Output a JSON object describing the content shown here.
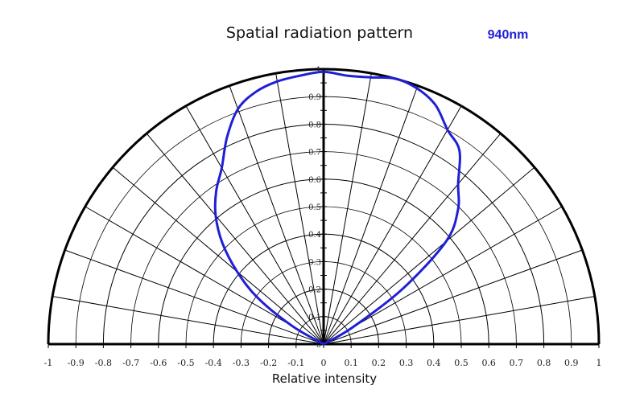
{
  "chart_data": {
    "type": "polar",
    "title": "Spatial radiation pattern",
    "wavelength_label": "940nm",
    "xlabel": "Relative intensity",
    "x_ticks": [
      "-1",
      "-0.9",
      "-0.8",
      "-0.7",
      "-0.6",
      "-0.5",
      "-0.4",
      "-0.3",
      "-0.2",
      "-0.1",
      "0",
      "0.1",
      "0.2",
      "0.3",
      "0.4",
      "0.5",
      "0.6",
      "0.7",
      "0.8",
      "0.9",
      "1"
    ],
    "radial_ticks": [
      "0",
      "0.1",
      "0.2",
      "0.3",
      "0.4",
      "0.5",
      "0.6",
      "0.7",
      "0.8",
      "0.9",
      "1"
    ],
    "angle_range_deg": [
      -90,
      90
    ],
    "angle_grid_step_deg": 10,
    "radial_range": [
      0,
      1
    ],
    "grid": true,
    "colors": {
      "series": "#1f1fd6",
      "wavelength": "#1f1fd6",
      "grid": "#000000"
    },
    "series": [
      {
        "name": "940nm",
        "angles_deg": [
          -60,
          -55,
          -50,
          -45,
          -40,
          -35,
          -30,
          -25,
          -20,
          -15,
          -10,
          -5,
          0,
          5,
          10,
          15,
          20,
          25,
          30,
          35,
          40,
          45,
          50,
          55,
          60
        ],
        "values": [
          0.13,
          0.29,
          0.41,
          0.52,
          0.61,
          0.68,
          0.74,
          0.83,
          0.91,
          0.95,
          0.97,
          0.98,
          0.99,
          0.98,
          0.985,
          1.0,
          0.99,
          0.96,
          0.9,
          0.86,
          0.76,
          0.69,
          0.58,
          0.35,
          0.12
        ]
      }
    ]
  }
}
